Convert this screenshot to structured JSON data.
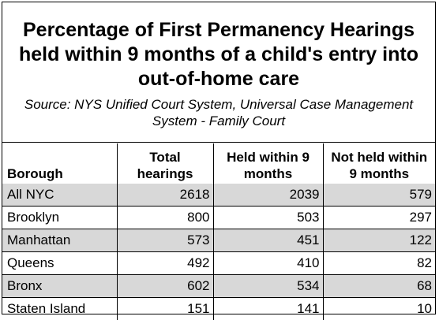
{
  "title": {
    "line1": "Percentage of First Permanency Hearings",
    "line2": "held within 9 months of a child's entry into",
    "line3": "out-of-home care"
  },
  "source": {
    "line1": "Source: NYS Unified Court System, Universal Case Management",
    "line2": "System - Family Court"
  },
  "table": {
    "headers": {
      "borough": "Borough",
      "total_line1": "Total",
      "total_line2": "hearings",
      "held_line1": "Held within 9",
      "held_line2": "months",
      "notheld_line1": "Not held within",
      "notheld_line2": "9 months"
    },
    "rows": [
      {
        "borough": "All NYC",
        "total": "2618",
        "held": "2039",
        "not_held": "579"
      },
      {
        "borough": "Brooklyn",
        "total": "800",
        "held": "503",
        "not_held": "297"
      },
      {
        "borough": "Manhattan",
        "total": "573",
        "held": "451",
        "not_held": "122"
      },
      {
        "borough": "Queens",
        "total": "492",
        "held": "410",
        "not_held": "82"
      },
      {
        "borough": "Bronx",
        "total": "602",
        "held": "534",
        "not_held": "68"
      },
      {
        "borough": "Staten Island",
        "total": "151",
        "held": "141",
        "not_held": "10"
      }
    ]
  },
  "colors": {
    "shaded_row": "#d8d8d8",
    "border": "#000000"
  }
}
